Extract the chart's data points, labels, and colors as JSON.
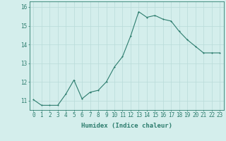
{
  "x": [
    0,
    1,
    2,
    3,
    4,
    5,
    6,
    7,
    8,
    9,
    10,
    11,
    12,
    13,
    14,
    15,
    16,
    17,
    18,
    19,
    20,
    21,
    22,
    23
  ],
  "y": [
    11.05,
    10.75,
    10.75,
    10.75,
    11.35,
    12.1,
    11.1,
    11.45,
    11.55,
    12.0,
    12.8,
    13.35,
    14.45,
    15.75,
    15.45,
    15.55,
    15.35,
    15.25,
    14.7,
    14.25,
    13.9,
    13.55,
    13.55,
    13.55
  ],
  "line_color": "#2d7d6e",
  "marker": "D",
  "marker_size": 2.0,
  "bg_color": "#d4eeec",
  "grid_color": "#b8dbd8",
  "xlabel": "Humidex (Indice chaleur)",
  "xlim": [
    -0.5,
    23.5
  ],
  "ylim": [
    10.5,
    16.3
  ],
  "yticks": [
    11,
    12,
    13,
    14,
    15,
    16
  ],
  "xticks": [
    0,
    1,
    2,
    3,
    4,
    5,
    6,
    7,
    8,
    9,
    10,
    11,
    12,
    13,
    14,
    15,
    16,
    17,
    18,
    19,
    20,
    21,
    22,
    23
  ],
  "xtick_labels": [
    "0",
    "1",
    "2",
    "3",
    "4",
    "5",
    "6",
    "7",
    "8",
    "9",
    "10",
    "11",
    "12",
    "13",
    "14",
    "15",
    "16",
    "17",
    "18",
    "19",
    "20",
    "21",
    "22",
    "23"
  ],
  "tick_color": "#2d7d6e",
  "axis_color": "#2d7d6e",
  "xlabel_fontsize": 6.5,
  "tick_fontsize": 5.5
}
